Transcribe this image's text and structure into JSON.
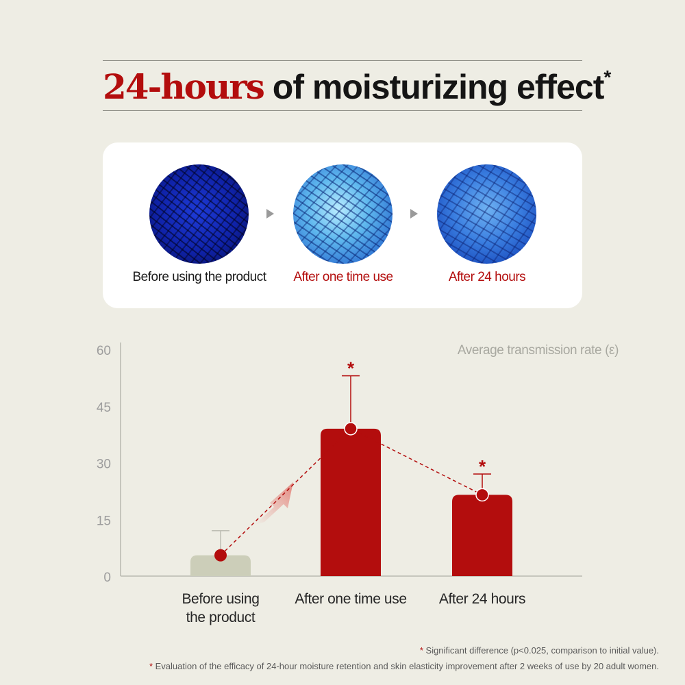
{
  "header": {
    "title_highlight": "24-hours",
    "title_rest": " of moisturizing effect",
    "title_star": "*"
  },
  "comparison": {
    "items": [
      {
        "label": "Before using the product"
      },
      {
        "label": "After one time use"
      },
      {
        "label": "After 24 hours"
      }
    ]
  },
  "chart_data": {
    "type": "bar",
    "categories": [
      "Before using\nthe product",
      "After one time use",
      "After 24 hours"
    ],
    "values": [
      5.5,
      39,
      21.5
    ],
    "error_upper": [
      12,
      53,
      27
    ],
    "significance": [
      "",
      "*",
      "*"
    ],
    "ylabel": "Average transmission rate (ε)",
    "ylim": [
      0,
      60
    ],
    "yticks": [
      0,
      15,
      30,
      45,
      60
    ],
    "grid": false,
    "colors": {
      "baseline": "#ccceb9",
      "treated": "#b30d0d",
      "axis": "#b9b9b0",
      "tick_label": "#9d9d9d"
    }
  },
  "footnotes": {
    "note1_mark": "*",
    "note1": " Significant difference (p<0.025, comparison to initial value).",
    "note2_mark": "*",
    "note2": " Evaluation of the efficacy of 24-hour moisture retention and skin elasticity improvement after 2 weeks of use by 20 adult women."
  }
}
